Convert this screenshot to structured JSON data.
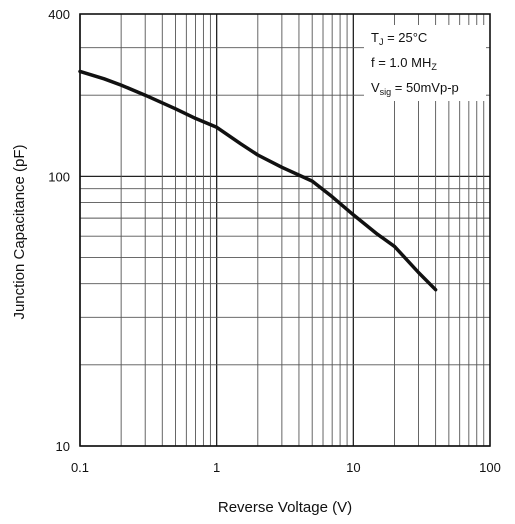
{
  "chart_data": {
    "type": "line",
    "title": "",
    "xlabel": "Reverse Voltage (V)",
    "ylabel": "Junction Capacitance (pF)",
    "xscale": "log",
    "yscale": "log",
    "xlim": [
      0.1,
      100
    ],
    "ylim": [
      10,
      400
    ],
    "grid": true,
    "x_ticks": [
      "0.1",
      "1",
      "10",
      "100"
    ],
    "y_ticks": [
      "10",
      "100",
      "400"
    ],
    "annotations": {
      "line1_main": "T",
      "line1_sub": "J",
      "line1_rest": " = 25°C",
      "line2_main": "f = 1.0 MH",
      "line2_sub": "Z",
      "line3_main": "V",
      "line3_sub": "sig",
      "line3_rest": " = 50mVp-p",
      "placement": "top-right"
    },
    "series": [
      {
        "x": [
          0.1,
          0.15,
          0.2,
          0.3,
          0.5,
          0.7,
          1,
          1.5,
          2,
          3,
          5,
          7,
          10,
          15,
          20,
          30,
          40
        ],
        "y": [
          245,
          230,
          218,
          200,
          178,
          164,
          152,
          132,
          120,
          108,
          96,
          84,
          72,
          61,
          55,
          44,
          38
        ]
      }
    ]
  }
}
